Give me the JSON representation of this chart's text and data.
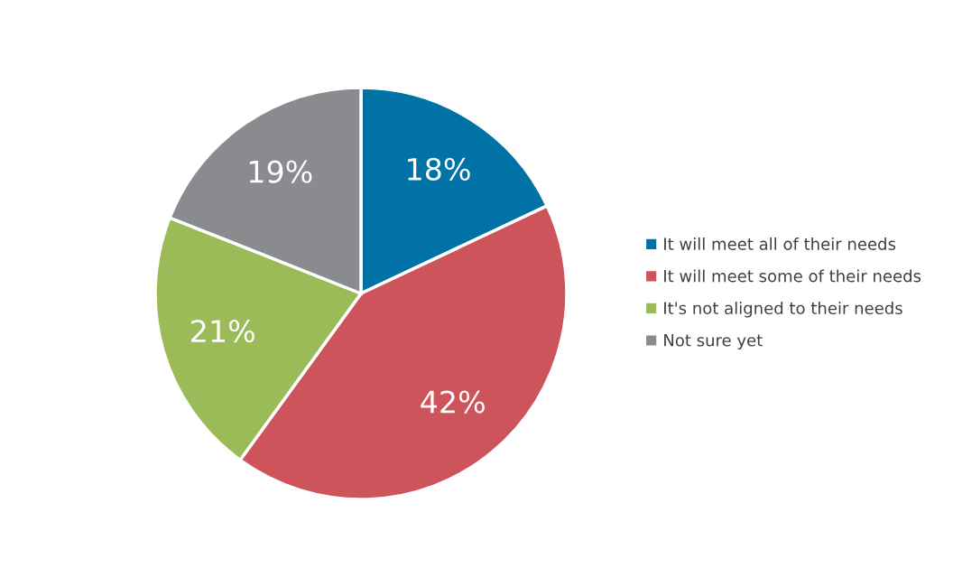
{
  "chart_data": {
    "type": "pie",
    "categories": [
      "It will meet all of their needs",
      "It will meet some of their needs",
      "It's not aligned to their needs",
      "Not sure yet"
    ],
    "values": [
      18,
      42,
      21,
      19
    ],
    "value_labels": [
      "18%",
      "42%",
      "21%",
      "19%"
    ],
    "colors": [
      "#0072a6",
      "#cd545b",
      "#9bbb59",
      "#898b8e"
    ],
    "legend": "right"
  }
}
